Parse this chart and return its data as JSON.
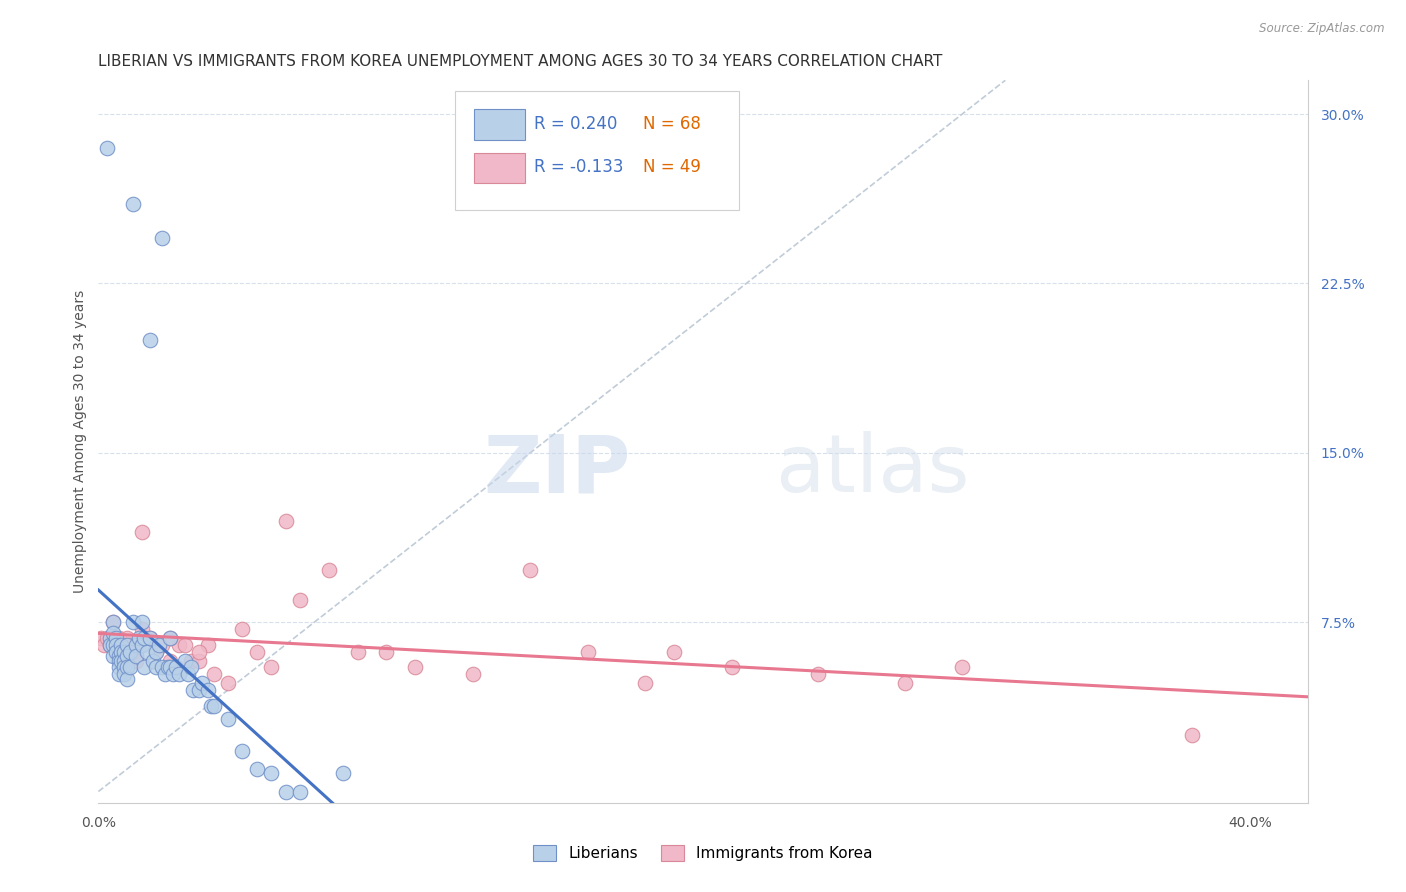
{
  "title": "LIBERIAN VS IMMIGRANTS FROM KOREA UNEMPLOYMENT AMONG AGES 30 TO 34 YEARS CORRELATION CHART",
  "source": "Source: ZipAtlas.com",
  "ylabel": "Unemployment Among Ages 30 to 34 years",
  "xlim": [
    0.0,
    0.42
  ],
  "ylim": [
    -0.005,
    0.315
  ],
  "xtick_positions": [
    0.0,
    0.4
  ],
  "xticklabels": [
    "0.0%",
    "40.0%"
  ],
  "ytick_positions": [
    0.075,
    0.15,
    0.225,
    0.3
  ],
  "ytick_labels": [
    "7.5%",
    "15.0%",
    "22.5%",
    "30.0%"
  ],
  "legend_labels_bottom": [
    "Liberians",
    "Immigrants from Korea"
  ],
  "blue_fill": "#b8d0e8",
  "blue_edge": "#7090c8",
  "pink_fill": "#f0b8c8",
  "pink_edge": "#d88898",
  "blue_line": "#4472c4",
  "pink_line": "#e87890",
  "ref_line_color": "#c0ccd8",
  "R_blue": 0.24,
  "N_blue": 68,
  "R_pink": -0.133,
  "N_pink": 49,
  "blue_x": [
    0.003,
    0.004,
    0.004,
    0.005,
    0.005,
    0.005,
    0.005,
    0.006,
    0.006,
    0.006,
    0.007,
    0.007,
    0.007,
    0.007,
    0.008,
    0.008,
    0.008,
    0.009,
    0.009,
    0.009,
    0.009,
    0.01,
    0.01,
    0.01,
    0.01,
    0.011,
    0.011,
    0.012,
    0.013,
    0.013,
    0.014,
    0.015,
    0.015,
    0.016,
    0.016,
    0.017,
    0.018,
    0.019,
    0.02,
    0.02,
    0.021,
    0.022,
    0.023,
    0.024,
    0.025,
    0.025,
    0.026,
    0.027,
    0.028,
    0.03,
    0.031,
    0.032,
    0.033,
    0.035,
    0.036,
    0.038,
    0.039,
    0.04,
    0.045,
    0.05,
    0.055,
    0.06,
    0.065,
    0.07,
    0.085,
    0.012,
    0.018,
    0.022
  ],
  "blue_y": [
    0.285,
    0.068,
    0.065,
    0.075,
    0.07,
    0.065,
    0.06,
    0.068,
    0.065,
    0.062,
    0.06,
    0.058,
    0.055,
    0.052,
    0.065,
    0.062,
    0.058,
    0.062,
    0.058,
    0.055,
    0.052,
    0.065,
    0.06,
    0.055,
    0.05,
    0.062,
    0.055,
    0.075,
    0.065,
    0.06,
    0.068,
    0.075,
    0.065,
    0.068,
    0.055,
    0.062,
    0.068,
    0.058,
    0.062,
    0.055,
    0.065,
    0.055,
    0.052,
    0.055,
    0.068,
    0.055,
    0.052,
    0.055,
    0.052,
    0.058,
    0.052,
    0.055,
    0.045,
    0.045,
    0.048,
    0.045,
    0.038,
    0.038,
    0.032,
    0.018,
    0.01,
    0.008,
    0.0,
    0.0,
    0.008,
    0.26,
    0.2,
    0.245
  ],
  "pink_x": [
    0.001,
    0.002,
    0.003,
    0.004,
    0.005,
    0.005,
    0.006,
    0.007,
    0.008,
    0.009,
    0.01,
    0.011,
    0.012,
    0.013,
    0.015,
    0.016,
    0.018,
    0.02,
    0.022,
    0.025,
    0.028,
    0.03,
    0.032,
    0.035,
    0.038,
    0.04,
    0.05,
    0.055,
    0.06,
    0.065,
    0.07,
    0.08,
    0.09,
    0.1,
    0.11,
    0.13,
    0.15,
    0.17,
    0.19,
    0.2,
    0.22,
    0.25,
    0.28,
    0.3,
    0.38,
    0.015,
    0.025,
    0.035,
    0.045
  ],
  "pink_y": [
    0.068,
    0.065,
    0.068,
    0.065,
    0.075,
    0.068,
    0.065,
    0.068,
    0.062,
    0.065,
    0.068,
    0.065,
    0.062,
    0.058,
    0.072,
    0.068,
    0.068,
    0.062,
    0.065,
    0.058,
    0.065,
    0.065,
    0.058,
    0.058,
    0.065,
    0.052,
    0.072,
    0.062,
    0.055,
    0.12,
    0.085,
    0.098,
    0.062,
    0.062,
    0.055,
    0.052,
    0.098,
    0.062,
    0.048,
    0.062,
    0.055,
    0.052,
    0.048,
    0.055,
    0.025,
    0.115,
    0.068,
    0.062,
    0.048
  ],
  "watermark_zip": "ZIP",
  "watermark_atlas": "atlas",
  "bg_color": "#ffffff",
  "grid_color": "#d8e0ec",
  "title_fontsize": 11,
  "ylabel_fontsize": 10,
  "tick_fontsize": 10,
  "legend_fontsize": 11,
  "marker_size": 110
}
